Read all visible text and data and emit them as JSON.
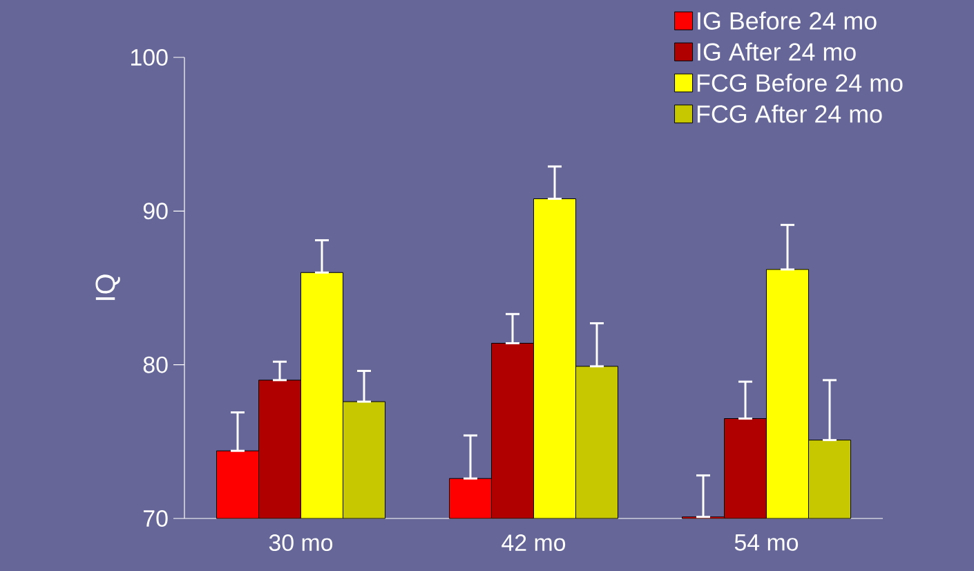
{
  "chart_data": {
    "type": "bar",
    "ylabel": "IQ",
    "categories": [
      "30 mo",
      "42 mo",
      "54 mo"
    ],
    "ylim": [
      70,
      100
    ],
    "yticks": [
      70,
      80,
      90,
      100
    ],
    "legend": "top right",
    "series": [
      {
        "name": "IG Before 24 mo",
        "color": "#ff0000",
        "values": [
          74.4,
          72.6,
          70.1
        ],
        "errors": [
          [
            74.4,
            76.9
          ],
          [
            72.6,
            75.4
          ],
          [
            70.1,
            72.8
          ]
        ]
      },
      {
        "name": "IG After 24 mo",
        "color": "#b00000",
        "values": [
          79.0,
          81.4,
          76.5
        ],
        "errors": [
          [
            79.0,
            80.2
          ],
          [
            81.4,
            83.3
          ],
          [
            76.5,
            78.9
          ]
        ]
      },
      {
        "name": "FCG Before 24 mo",
        "color": "#ffff00",
        "values": [
          86.0,
          90.8,
          86.2
        ],
        "errors": [
          [
            86.0,
            88.1
          ],
          [
            90.8,
            92.9
          ],
          [
            86.2,
            89.1
          ]
        ]
      },
      {
        "name": "FCG After 24 mo",
        "color": "#c8c800",
        "values": [
          77.6,
          79.9,
          75.1
        ],
        "errors": [
          [
            77.6,
            79.6
          ],
          [
            79.9,
            82.7
          ],
          [
            75.1,
            79.0
          ]
        ]
      }
    ]
  }
}
